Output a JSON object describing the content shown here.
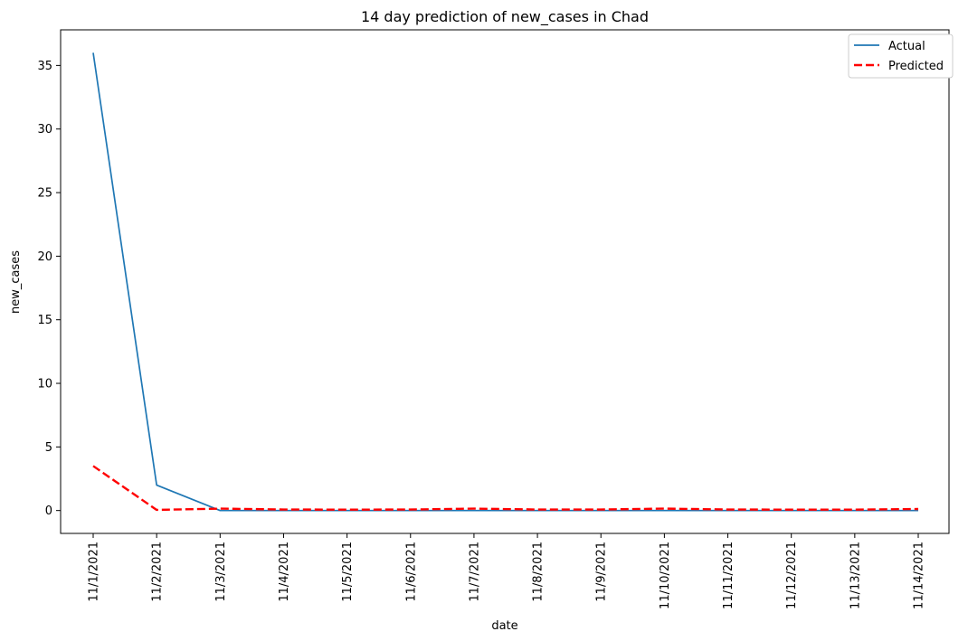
{
  "chart_data": {
    "type": "line",
    "title": "14 day prediction of new_cases in Chad",
    "xlabel": "date",
    "ylabel": "new_cases",
    "categories": [
      "11/1/2021",
      "11/2/2021",
      "11/3/2021",
      "11/4/2021",
      "11/5/2021",
      "11/6/2021",
      "11/7/2021",
      "11/8/2021",
      "11/9/2021",
      "11/10/2021",
      "11/11/2021",
      "11/12/2021",
      "11/13/2021",
      "11/14/2021"
    ],
    "yticks": [
      0,
      5,
      10,
      15,
      20,
      25,
      30,
      35
    ],
    "ylim": [
      -1.8,
      37.8
    ],
    "grid": false,
    "legend_position": "top-right",
    "series": [
      {
        "name": "Actual",
        "color": "#1f77b4",
        "style": "solid",
        "values": [
          36,
          2,
          0,
          0,
          0,
          0,
          0,
          0,
          0,
          0,
          0,
          0,
          0,
          0
        ]
      },
      {
        "name": "Predicted",
        "color": "#ff0000",
        "style": "dashed",
        "values": [
          3.5,
          0.05,
          0.15,
          0.08,
          0.07,
          0.08,
          0.15,
          0.08,
          0.08,
          0.15,
          0.08,
          0.07,
          0.07,
          0.12
        ]
      }
    ]
  }
}
